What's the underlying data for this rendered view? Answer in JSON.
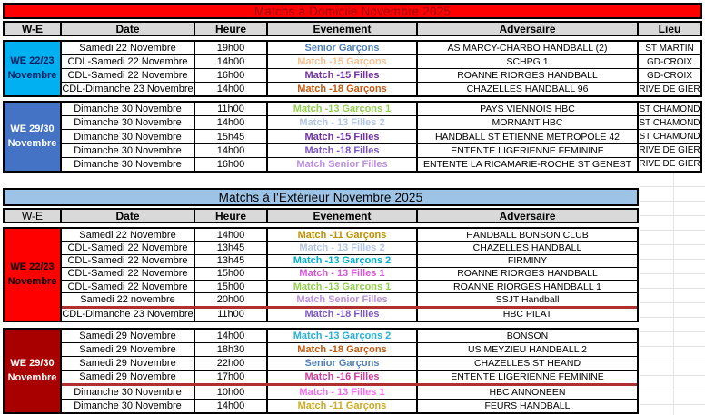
{
  "separator_color": "#b03030",
  "tables": [
    {
      "title": {
        "text": "Matchs à Domicile Novembre 2025",
        "bg": "#ff0000",
        "color": "#9c0006"
      },
      "header": {
        "bg": "#d9d9d9",
        "columns": [
          "W-E",
          "Date",
          "Heure",
          "Evenement",
          "Adversaire",
          "Lieu"
        ]
      },
      "sections": [
        {
          "we": {
            "line1": "WE 22/23",
            "line2": "Novembre",
            "bg": "#00b0f0",
            "color": "#002060"
          },
          "rows": [
            {
              "date": "Samedi 22 Novembre",
              "heure": "19h00",
              "evenement": "Senior Garçons",
              "event_color": "#4f81bd",
              "adversaire": "AS MARCY-CHARBO HANDBALL (2)",
              "lieu": "ST MARTIN"
            },
            {
              "date": "CDL-Samedi 22 Novembre",
              "heure": "14h00",
              "evenement": "Match -15 Garçons",
              "event_color": "#fac090",
              "adversaire": "SCHPG 1",
              "lieu": "GD-CROIX"
            },
            {
              "date": "CDL-Samedi 22 Novembre",
              "heure": "16h00",
              "evenement": "Match -15 Filles",
              "event_color": "#7030a0",
              "adversaire": "ROANNE RIORGES HANDBALL",
              "lieu": "GD-CROIX"
            },
            {
              "date": "CDL-Dimanche 23 Novembre",
              "heure": "14h00",
              "evenement": "Match -18 Garçons",
              "event_color": "#c55a11",
              "adversaire": "CHAZELLES HANDBALL 96",
              "lieu": "RIVE DE GIER"
            }
          ]
        },
        {
          "we": {
            "line1": "WE 29/30",
            "line2": "Novembre",
            "bg": "#4472c4",
            "color": "#ffffff"
          },
          "rows": [
            {
              "date": "Dimanche 30 Novembre",
              "heure": "11h00",
              "evenement": "Match -13 Garçons 1",
              "event_color": "#92d050",
              "adversaire": "PAYS VIENNOIS HBC",
              "lieu": "ST CHAMOND"
            },
            {
              "date": "Dimanche 30 Novembre",
              "heure": "14h00",
              "evenement": "Match - 13 Filles 2",
              "event_color": "#b3c6e7",
              "adversaire": "MORNANT HBC",
              "lieu": "ST CHAMOND"
            },
            {
              "date": "Dimanche 30 Novembre",
              "heure": "15h45",
              "evenement": "Match -15 Filles",
              "event_color": "#7030a0",
              "adversaire": "HANDBALL ST ETIENNE METROPOLE 42",
              "lieu": "ST CHAMOND"
            },
            {
              "date": "Dimanche 30 Novembre",
              "heure": "14h00",
              "evenement": "Match -18 Filles",
              "event_color": "#7d57c4",
              "adversaire": "ENTENTE LIGERIENNE FEMININE",
              "lieu": "RIVE DE GIER"
            },
            {
              "date": "Dimanche 30 Novembre",
              "heure": "16h00",
              "evenement": "Match Senior Filles",
              "event_color": "#bd8fe3",
              "adversaire": "ENTENTE LA RICAMARIE-ROCHE ST GENEST",
              "lieu": "RIVE DE GIER"
            }
          ]
        }
      ]
    },
    {
      "title": {
        "text": "Matchs à l'Extérieur Novembre 2025",
        "bg": "#9dc3e6",
        "color": "#000000"
      },
      "header": {
        "bg": "#d9d9d9",
        "columns": [
          "W-E",
          "Date",
          "Heure",
          "Evenement",
          "Adversaire"
        ]
      },
      "sections": [
        {
          "we": {
            "line1": "WE 22/23",
            "line2": "Novembre",
            "bg": "#ff0000",
            "color": "#000000"
          },
          "rows": [
            {
              "date": "Samedi 22 Novembre",
              "heure": "14h00",
              "evenement": "Match -11 Garçons",
              "event_color": "#bf9000",
              "adversaire": "HANDBALL BONSON CLUB"
            },
            {
              "date": "CDL-Samedi 22 Novembre",
              "heure": "13h45",
              "evenement": "Match - 13 Filles 2",
              "event_color": "#b3c6e7",
              "adversaire": "CHAZELLES HANDBALL"
            },
            {
              "date": "CDL-Samedi 22 Novembre",
              "heure": "13h45",
              "evenement": "Match -13 Garçons 2",
              "event_color": "#00aed0",
              "adversaire": "FIRMINY"
            },
            {
              "date": "CDL-Samedi 22 Novembre",
              "heure": "15h00",
              "evenement": "Match - 13 Filles 1",
              "event_color": "#d957d9",
              "adversaire": "ROANNE RIORGES HANDBALL"
            },
            {
              "date": "CDL-Samedi 22 Novembre",
              "heure": "15h00",
              "evenement": "Match -13 Garçons 1",
              "event_color": "#92d050",
              "adversaire": "ROANNE RIORGES HANDBALL 1"
            },
            {
              "date": "Samedi 22 novembre",
              "heure": "20h00",
              "evenement": "Match Senior Filles",
              "event_color": "#bd8fe3",
              "adversaire": "SSJT Handball",
              "sep_after": true
            },
            {
              "date": "CDL-Dimanche 23 Novembre",
              "heure": "11h00",
              "evenement": "Match -18 Filles",
              "event_color": "#7d57c4",
              "adversaire": "HBC PILAT"
            }
          ]
        },
        {
          "we": {
            "line1": "WE 29/30",
            "line2": "Novembre",
            "bg": "#a80000",
            "color": "#ffffff"
          },
          "rows": [
            {
              "date": "Samedi 29 Novembre",
              "heure": "14h00",
              "evenement": "Match -13 Garçons 2",
              "event_color": "#2ab0d8",
              "adversaire": "BONSON"
            },
            {
              "date": "Samedi 29 Novembre",
              "heure": "18h30",
              "evenement": "Match -18 Garçons",
              "event_color": "#c55a11",
              "adversaire": "US MEYZIEU HANDBALL 2"
            },
            {
              "date": "Samedi 29 Novembre",
              "heure": "22h00",
              "evenement": "Senior Garçons",
              "event_color": "#4f81bd",
              "adversaire": "CHAZELLES ST HEAND"
            },
            {
              "date": "Samedi 29 Novembre",
              "heure": "17h00",
              "evenement": "Match -16 Filles",
              "event_color": "#cc3d9c",
              "adversaire": "ENTENTE LIGERIENNE FEMININE",
              "sep_after": true
            },
            {
              "date": "Dimanche 30 Novembre",
              "heure": "10h00",
              "evenement": "Match - 13 Filles 1",
              "event_color": "#f36df3",
              "adversaire": "HBC ANNONEEN"
            },
            {
              "date": "Dimanche 30 Novembre",
              "heure": "14h00",
              "evenement": "Match -11 Garçons",
              "event_color": "#ccaa22",
              "adversaire": "FEURS HANDBALL"
            }
          ]
        }
      ]
    }
  ]
}
